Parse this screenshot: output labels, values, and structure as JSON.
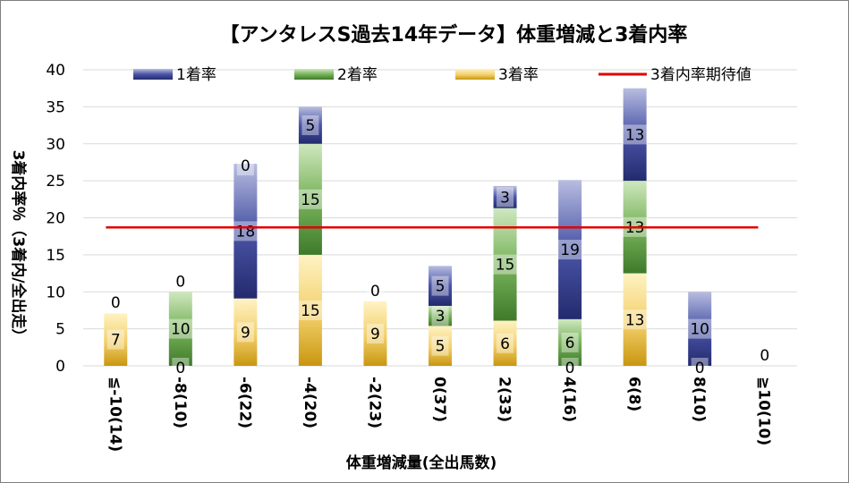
{
  "chart_data": {
    "type": "bar",
    "stacked": true,
    "title": "【アンタレスS過去14年データ】体重増減と3着内率",
    "xlabel": "体重増減量(全出馬数)",
    "ylabel": "3着内率％（3着内/全出走）",
    "ylim": [
      0,
      40
    ],
    "yticks": [
      0,
      5,
      10,
      15,
      20,
      25,
      30,
      35,
      40
    ],
    "grid": true,
    "legend_position": "top",
    "categories": [
      "≦-10(14)",
      "-8(10)",
      "-6(22)",
      "-4(20)",
      "-2(23)",
      "0(37)",
      "2(33)",
      "4(16)",
      "6(8)",
      "8(10)",
      "≧10(10)"
    ],
    "series": [
      {
        "name": "3着率",
        "color": "#e6b02a",
        "values": [
          7.1,
          0,
          9.1,
          15.0,
          8.7,
          5.4,
          6.1,
          0,
          12.5,
          0,
          0
        ],
        "labels": [
          "7",
          "",
          "9",
          "15",
          "9",
          "5",
          "6",
          "",
          "13",
          "",
          ""
        ]
      },
      {
        "name": "2着率",
        "color": "#6aa84f",
        "values": [
          0,
          10.0,
          0,
          15.0,
          0,
          2.7,
          15.2,
          6.3,
          12.5,
          0,
          0
        ],
        "labels": [
          "",
          "10",
          "",
          "15",
          "",
          "3",
          "15",
          "6",
          "13",
          "",
          ""
        ]
      },
      {
        "name": "1着率",
        "color": "#3f4a9a",
        "values": [
          0,
          0,
          18.2,
          5.0,
          0,
          5.4,
          3.0,
          18.8,
          12.5,
          10.0,
          0
        ],
        "labels": [
          "",
          "",
          "18",
          "5",
          "",
          "5",
          "3",
          "19",
          "13",
          "10",
          ""
        ]
      }
    ],
    "zero_labels": [
      {
        "category": "≦-10(14)",
        "text": "0"
      },
      {
        "category": "-8(10)",
        "text": "0"
      },
      {
        "category": "-8(10)",
        "text": "0"
      },
      {
        "category": "-6(22)",
        "text": "0"
      },
      {
        "category": "-2(23)",
        "text": "0"
      },
      {
        "category": "4(16)",
        "text": "0"
      },
      {
        "category": "8(10)",
        "text": "0"
      },
      {
        "category": "≧10(10)",
        "text": "0"
      }
    ],
    "reference_line": {
      "name": "3着内率期待値",
      "value": 18.7,
      "color": "#e00000"
    }
  }
}
